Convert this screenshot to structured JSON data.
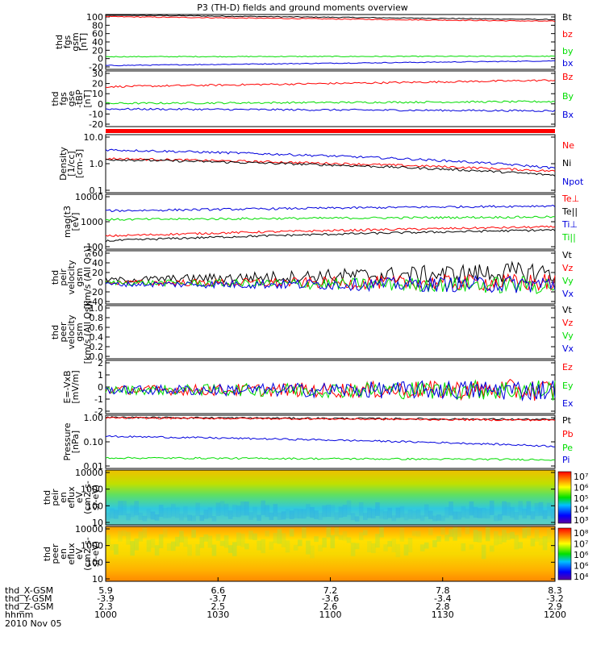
{
  "title": "P3 (TH-D) fields and ground moments overview",
  "date_label": "2010 Nov 05",
  "colors": {
    "black": "#000000",
    "red": "#ff0000",
    "green": "#00dd00",
    "blue": "#0000dd"
  },
  "ephemeris": {
    "rows": [
      {
        "label": "thd_X-GSM",
        "values": [
          "5.9",
          "6.6",
          "7.2",
          "7.8",
          "8.3"
        ]
      },
      {
        "label": "thd_Y-GSM",
        "values": [
          "-3.9",
          "-3.7",
          "-3.6",
          "-3.4",
          "-3.2"
        ]
      },
      {
        "label": "thd_Z-GSM",
        "values": [
          "2.3",
          "2.5",
          "2.6",
          "2.8",
          "2.9"
        ]
      },
      {
        "label": "hhmm",
        "values": [
          "1000",
          "1030",
          "1100",
          "1130",
          "1200"
        ]
      }
    ]
  },
  "chart_data": [
    {
      "type": "line",
      "id": "fgs-gsm",
      "ylabel": [
        "thd",
        "fgs",
        "gsm",
        "[nT]"
      ],
      "ylim": [
        -30,
        100
      ],
      "yticks": [
        "100",
        "80",
        "60",
        "40",
        "20",
        "0",
        "-20"
      ],
      "series": [
        {
          "name": "Bt",
          "color": "black",
          "start": 99,
          "end": 88
        },
        {
          "name": "bz",
          "color": "red",
          "start": 95,
          "end": 84
        },
        {
          "name": "by",
          "color": "green",
          "start": 0,
          "end": 1
        },
        {
          "name": "bx",
          "color": "blue",
          "start": -21,
          "end": -10
        }
      ]
    },
    {
      "type": "line",
      "id": "fgs-gse",
      "ylabel": [
        "thd",
        "fgs",
        "gse",
        "-tBP",
        "[nT]"
      ],
      "ylim": [
        -25,
        35
      ],
      "yticks": [
        "30",
        "20",
        "10",
        "0",
        "-10",
        "-20"
      ],
      "series": [
        {
          "name": "Bz",
          "color": "red",
          "start": 18,
          "end": 25
        },
        {
          "name": "By",
          "color": "green",
          "start": 0,
          "end": 2
        },
        {
          "name": "Bx",
          "color": "blue",
          "start": -6,
          "end": -8
        }
      ]
    },
    {
      "type": "bar",
      "id": "status-bar",
      "color": "red"
    },
    {
      "type": "line",
      "id": "density",
      "ylabel": [
        "Density",
        "[1/cc]",
        "[cm-3]"
      ],
      "log": true,
      "ylim": [
        0.1,
        10
      ],
      "yticks": [
        "10.0",
        "1.0",
        "0.1"
      ],
      "series": [
        {
          "name": "Ne",
          "color": "red",
          "start": 1.5,
          "end": 0.55
        },
        {
          "name": "Ni",
          "color": "black",
          "start": 1.4,
          "end": 0.4
        },
        {
          "name": "Npot",
          "color": "blue",
          "start": 3,
          "end": 0.7
        }
      ]
    },
    {
      "type": "line",
      "id": "temperature",
      "ylabel": [
        "mag(t3",
        "[eV]"
      ],
      "log": true,
      "ylim": [
        100,
        10000
      ],
      "yticks": [
        "10000",
        "1000",
        "100"
      ],
      "series": [
        {
          "name": "Te⊥",
          "color": "red",
          "start": 300,
          "end": 650
        },
        {
          "name": "Te||",
          "color": "black",
          "start": 200,
          "end": 500
        },
        {
          "name": "Ti⊥",
          "color": "blue",
          "start": 2500,
          "end": 3800
        },
        {
          "name": "Ti||",
          "color": "green",
          "start": 1200,
          "end": 1500
        }
      ]
    },
    {
      "type": "line",
      "id": "peir-velocity",
      "ylabel": [
        "thd",
        "peir",
        "velocity",
        "gsm",
        "[km/s (All Qs)]"
      ],
      "ylim": [
        -40,
        60
      ],
      "yticks": [
        "60",
        "40",
        "20",
        "0",
        "-20",
        "-40"
      ],
      "series": [
        {
          "name": "Vt",
          "color": "black",
          "start": 5,
          "end": 20
        },
        {
          "name": "Vz",
          "color": "red",
          "start": 0,
          "end": 0
        },
        {
          "name": "Vy",
          "color": "green",
          "start": 0,
          "end": -5
        },
        {
          "name": "Vx",
          "color": "blue",
          "start": -3,
          "end": -3
        }
      ]
    },
    {
      "type": "line",
      "id": "peer-velocity",
      "ylabel": [
        "thd",
        "peer",
        "velocity",
        "gsm",
        "[km/s (All Qs)]"
      ],
      "ylim": [
        0,
        1
      ],
      "yticks": [
        "1.0",
        "0.8",
        "0.6",
        "0.4",
        "0.2",
        "0.0"
      ],
      "series": [
        {
          "name": "Vt",
          "color": "black"
        },
        {
          "name": "Vz",
          "color": "red"
        },
        {
          "name": "Vy",
          "color": "green"
        },
        {
          "name": "Vx",
          "color": "blue"
        }
      ]
    },
    {
      "type": "line",
      "id": "efield",
      "ylabel": [
        "E=-VxB",
        "[mV/m]"
      ],
      "ylim": [
        -2,
        2.5
      ],
      "yticks": [
        "2",
        "1",
        "0",
        "-1",
        "-2"
      ],
      "series": [
        {
          "name": "Ez",
          "color": "red",
          "start": 0,
          "end": 0
        },
        {
          "name": "Ey",
          "color": "green",
          "start": 0,
          "end": 0
        },
        {
          "name": "Ex",
          "color": "blue",
          "start": 0,
          "end": 0
        }
      ]
    },
    {
      "type": "line",
      "id": "pressure",
      "ylabel": [
        "Pressure",
        "[nPa]"
      ],
      "log": true,
      "ylim": [
        0.01,
        2.5
      ],
      "yticks": [
        "1.00",
        "0.10",
        "0.01"
      ],
      "series": [
        {
          "name": "Pt",
          "color": "black",
          "start": 2.0,
          "end": 1.6
        },
        {
          "name": "Pb",
          "color": "red",
          "start": 1.9,
          "end": 1.5
        },
        {
          "name": "Pe",
          "color": "green",
          "start": 0.03,
          "end": 0.025
        },
        {
          "name": "Pi",
          "color": "blue",
          "start": 0.28,
          "end": 0.1
        }
      ]
    },
    {
      "type": "heatmap",
      "id": "peir-spectrogram",
      "ylabel": [
        "thd",
        "peir",
        "en",
        "eflux",
        "eV",
        "(cm2-s-",
        "sr-eV)"
      ],
      "yticks": [
        "10000",
        "1000",
        "100",
        "10"
      ],
      "colorbar_ticks": [
        "10⁷",
        "10⁶",
        "10⁵",
        "10⁴",
        "10³"
      ]
    },
    {
      "type": "heatmap",
      "id": "peer-spectrogram",
      "ylabel": [
        "thd",
        "peer",
        "en",
        "eflux",
        "eV",
        "(cm2-s-",
        "sr-eV)"
      ],
      "yticks": [
        "10000",
        "1000",
        "100",
        "10"
      ],
      "colorbar_ticks": [
        "10⁸",
        "10⁷",
        "10⁶",
        "10⁶",
        "10⁴"
      ]
    }
  ]
}
